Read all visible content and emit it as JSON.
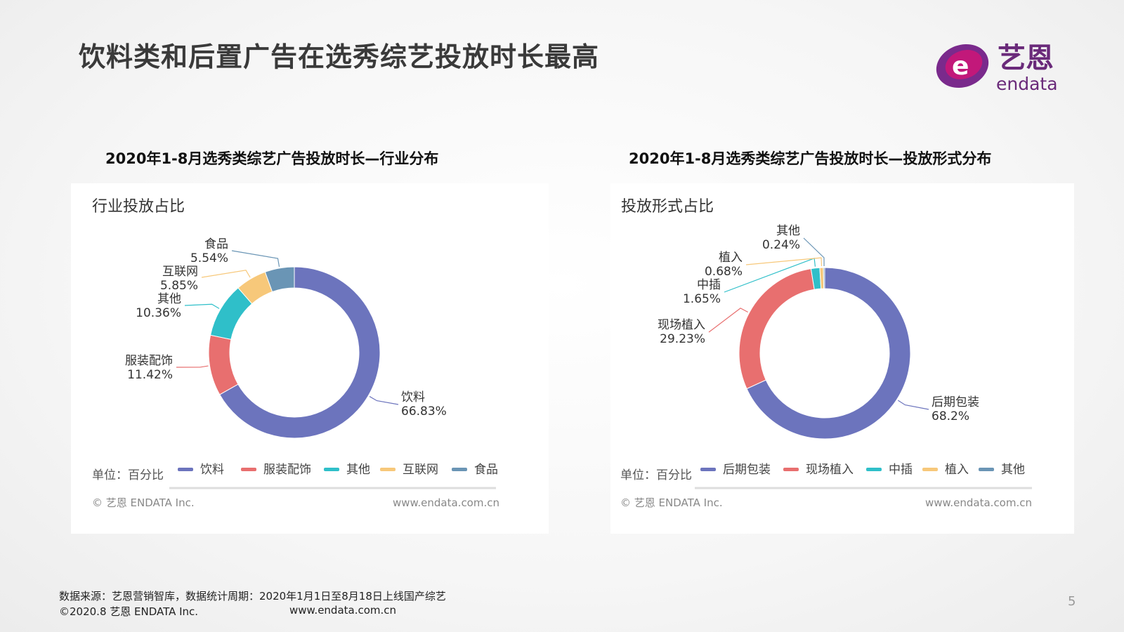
{
  "slide": {
    "title": "饮料类和后置广告在选秀综艺投放时长最高",
    "page_number": "5"
  },
  "logo": {
    "cn_text": "艺恩",
    "en_text": "endata",
    "colors": {
      "purple": "#7a2a8c",
      "magenta": "#c2187a",
      "text": "#6a2a7a"
    }
  },
  "footer": {
    "source": "数据来源：艺恩营销智库，数据统计周期：2020年1月1日至8月18日上线国产综艺",
    "copyright": "©2020.8 艺恩 ENDATA Inc.",
    "url": "www.endata.com.cn"
  },
  "chart_data": [
    {
      "type": "pie",
      "donut": true,
      "heading": "2020年1-8月选秀类综艺广告投放时长—行业分布",
      "title": "行业投放占比",
      "unit_label": "单位：百分比",
      "watermark_left": "© 艺恩 ENDATA Inc.",
      "watermark_right": "www.endata.com.cn",
      "legend_position": "bottom",
      "slices": [
        {
          "name": "饮料",
          "value": 66.83,
          "label": "66.83%",
          "color": "#6c74bd"
        },
        {
          "name": "服装配饰",
          "value": 11.42,
          "label": "11.42%",
          "color": "#e86f6f"
        },
        {
          "name": "其他",
          "value": 10.36,
          "label": "10.36%",
          "color": "#2fbfc9"
        },
        {
          "name": "互联网",
          "value": 5.85,
          "label": "5.85%",
          "color": "#f7c87a"
        },
        {
          "name": "食品",
          "value": 5.54,
          "label": "5.54%",
          "color": "#6a95b5"
        }
      ]
    },
    {
      "type": "pie",
      "donut": true,
      "heading": "2020年1-8月选秀类综艺广告投放时长—投放形式分布",
      "title": "投放形式占比",
      "unit_label": "单位：百分比",
      "watermark_left": "© 艺恩 ENDATA Inc.",
      "watermark_right": "www.endata.com.cn",
      "legend_position": "bottom",
      "slices": [
        {
          "name": "后期包装",
          "value": 68.2,
          "label": "68.2%",
          "color": "#6c74bd"
        },
        {
          "name": "现场植入",
          "value": 29.23,
          "label": "29.23%",
          "color": "#e86f6f"
        },
        {
          "name": "中插",
          "value": 1.65,
          "label": "1.65%",
          "color": "#2fbfc9"
        },
        {
          "name": "植入",
          "value": 0.68,
          "label": "0.68%",
          "color": "#f7c87a"
        },
        {
          "name": "其他",
          "value": 0.24,
          "label": "0.24%",
          "color": "#6a95b5"
        }
      ]
    }
  ]
}
